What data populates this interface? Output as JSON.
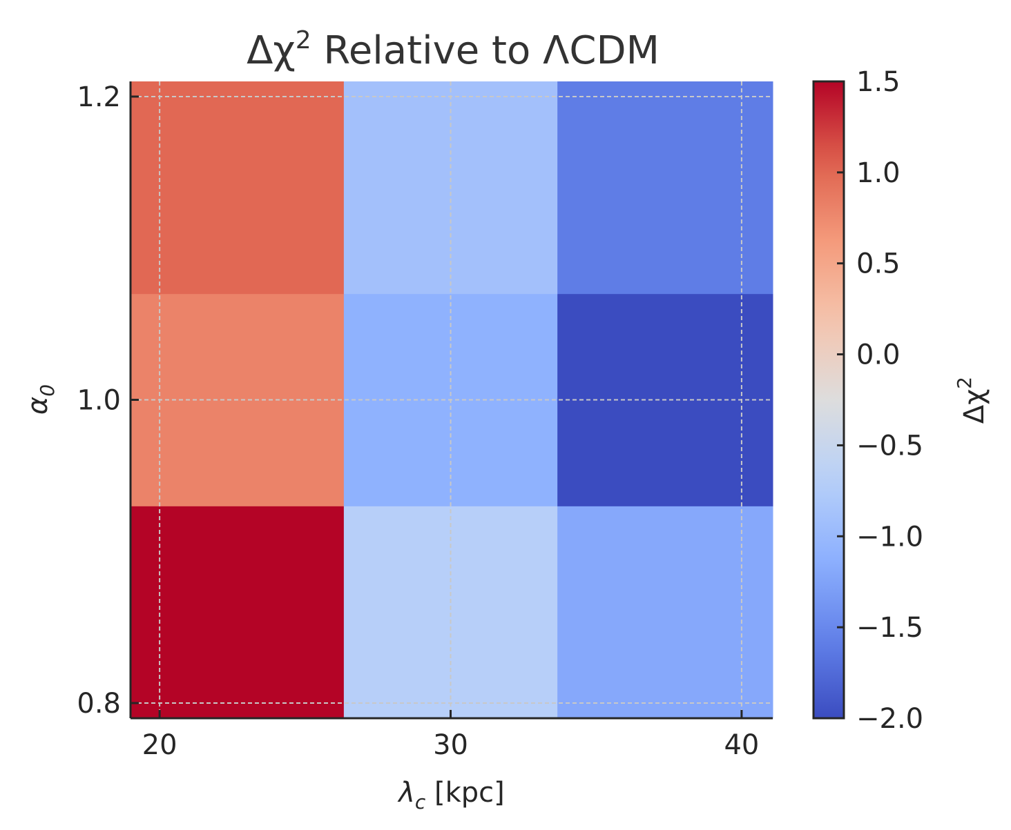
{
  "chart_data": {
    "type": "heatmap",
    "title": {
      "base": "Δχ",
      "sup": "2",
      "rest": " Relative to ΛCDM"
    },
    "xlabel": {
      "sym": "λ",
      "sub": "c",
      "rest": " [kpc]"
    },
    "ylabel": {
      "sym": "α",
      "sub": "0"
    },
    "x_centers": [
      20,
      30,
      40
    ],
    "y_centers": [
      0.8,
      1.0,
      1.2
    ],
    "xlim": [
      19,
      41.07
    ],
    "ylim": [
      0.79,
      1.21
    ],
    "x_cell_edges": [
      19,
      26.33,
      33.67,
      41.07
    ],
    "y_cell_edges": [
      0.79,
      0.93,
      1.07,
      1.21
    ],
    "x_ticks": [
      20,
      30,
      40
    ],
    "x_tick_labels": [
      "20",
      "30",
      "40"
    ],
    "y_ticks": [
      0.8,
      1.0,
      1.2
    ],
    "y_tick_labels": [
      "0.8",
      "1.0",
      "1.2"
    ],
    "values": [
      [
        1.5,
        -0.7,
        -1.2
      ],
      [
        0.8,
        -1.1,
        -2.0
      ],
      [
        1.0,
        -0.9,
        -1.6
      ]
    ],
    "colormap": "coolwarm",
    "grid": true,
    "colorbar": {
      "vmin": -2.0,
      "vmax": 1.5,
      "ticks": [
        1.5,
        1.0,
        0.5,
        0.0,
        -0.5,
        -1.0,
        -1.5,
        -2.0
      ],
      "tick_labels": [
        "1.5",
        "1.0",
        "0.5",
        "0.0",
        "−0.5",
        "−1.0",
        "−1.5",
        "−2.0"
      ],
      "label": {
        "base": "Δχ",
        "sup": "2"
      }
    }
  }
}
